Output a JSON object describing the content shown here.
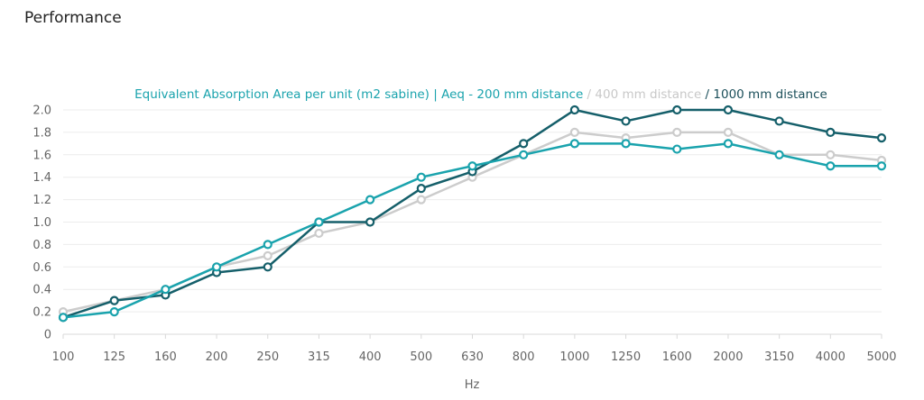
{
  "page": {
    "heading": "Performance"
  },
  "chart_data": {
    "type": "line",
    "title_parts": [
      {
        "text": "Equivalent Absorption Area per unit (m2 sabine) | Aeq - 200 mm distance",
        "color": "#1aa3ad"
      },
      {
        "text": " / 400 mm distance",
        "color": "#c8c8c8"
      },
      {
        "text": " / 1000 mm distance",
        "color": "#1b4f5a"
      }
    ],
    "xlabel": "Hz",
    "ylabel": "",
    "categories": [
      "100",
      "125",
      "160",
      "200",
      "250",
      "315",
      "400",
      "500",
      "630",
      "800",
      "1000",
      "1250",
      "1600",
      "2000",
      "3150",
      "4000",
      "5000"
    ],
    "ylim": [
      0,
      2.0
    ],
    "yticks": [
      "0",
      "0.2",
      "0.4",
      "0.6",
      "0.8",
      "1.0",
      "1.2",
      "1.4",
      "1.6",
      "1.8",
      "2.0"
    ],
    "grid": true,
    "series": [
      {
        "name": "400 mm distance",
        "color": "#cccccc",
        "values": [
          0.2,
          0.3,
          0.4,
          0.6,
          0.7,
          0.9,
          1.0,
          1.2,
          1.4,
          1.6,
          1.8,
          1.75,
          1.8,
          1.8,
          1.6,
          1.6,
          1.55
        ]
      },
      {
        "name": "1000 mm distance",
        "color": "#155f6a",
        "values": [
          0.15,
          0.3,
          0.35,
          0.55,
          0.6,
          1.0,
          1.0,
          1.3,
          1.45,
          1.7,
          2.0,
          1.9,
          2.0,
          2.0,
          1.9,
          1.8,
          1.75
        ]
      },
      {
        "name": "200 mm distance",
        "color": "#1aa3ad",
        "values": [
          0.15,
          0.2,
          0.4,
          0.6,
          0.8,
          1.0,
          1.2,
          1.4,
          1.5,
          1.6,
          1.7,
          1.7,
          1.65,
          1.7,
          1.6,
          1.5,
          1.5
        ]
      }
    ]
  }
}
